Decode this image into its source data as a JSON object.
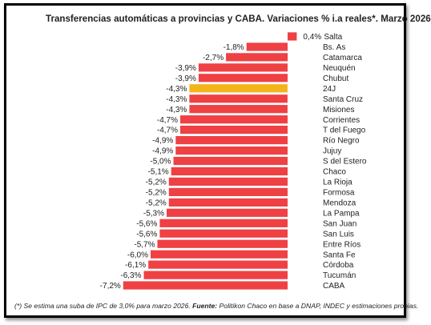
{
  "colors": {
    "bar": "#ef4044",
    "highlight": "#f3b41b",
    "text": "#222222"
  },
  "chart_data": {
    "type": "bar",
    "orientation": "horizontal",
    "title": "Transferencias automáticas a provincias y CABA. Variaciones % i.a reales*. Marzo 2026",
    "categories": [
      "Salta",
      "Bs. As",
      "Catamarca",
      "Neuquén",
      "Chubut",
      "24J",
      "Santa Cruz",
      "Misiones",
      "Corrientes",
      "T del Fuego",
      "Río Negro",
      "Jujuy",
      "S del Estero",
      "Chaco",
      "La Rioja",
      "Formosa",
      "Mendoza",
      "La Pampa",
      "San Juan",
      "San Luis",
      "Entre Ríos",
      "Santa Fe",
      "Córdoba",
      "Tucumán",
      "CABA"
    ],
    "values": [
      0.4,
      -1.8,
      -2.7,
      -3.9,
      -3.9,
      -4.3,
      -4.3,
      -4.3,
      -4.7,
      -4.7,
      -4.9,
      -4.9,
      -5.0,
      -5.1,
      -5.2,
      -5.2,
      -5.2,
      -5.3,
      -5.6,
      -5.6,
      -5.7,
      -6.0,
      -6.1,
      -6.3,
      -7.2
    ],
    "value_labels": [
      "0,4%",
      "-1,8%",
      "-2,7%",
      "-3,9%",
      "-3,9%",
      "-4,3%",
      "-4,3%",
      "-4,3%",
      "-4,7%",
      "-4,7%",
      "-4,9%",
      "-4,9%",
      "-5,0%",
      "-5,1%",
      "-5,2%",
      "-5,2%",
      "-5,2%",
      "-5,3%",
      "-5,6%",
      "-5,6%",
      "-5,7%",
      "-6,0%",
      "-6,1%",
      "-6,3%",
      "-7,2%"
    ],
    "highlight": "24J",
    "grid": false,
    "legend": "none"
  },
  "footnote": {
    "note": "(*) Se estima una suba de IPC de 3,0% para marzo 2026. ",
    "source_label": "Fuente:",
    "source_text": " Politikon Chaco en base a DNAP, INDEC y estimaciones propias."
  }
}
